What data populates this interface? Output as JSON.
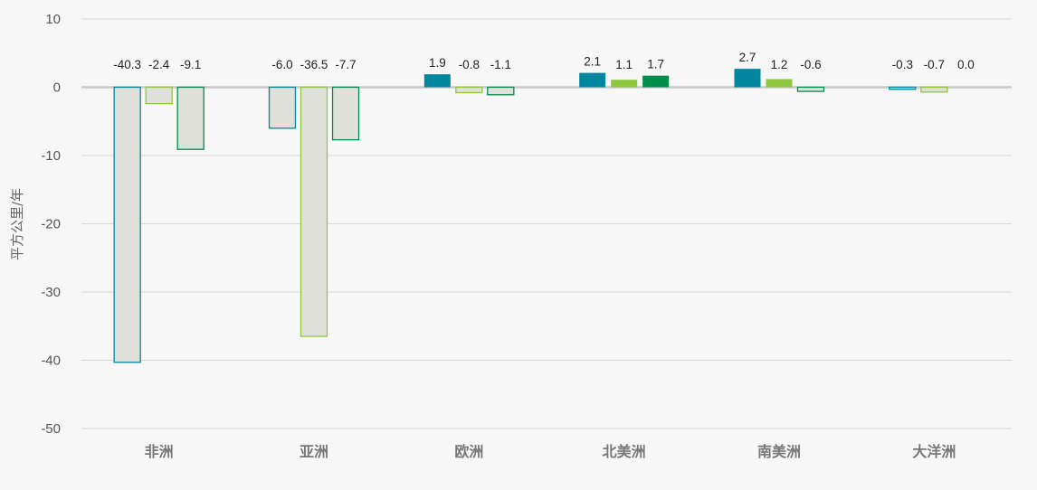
{
  "chart_data": {
    "type": "bar",
    "ylabel": "平方公里/年",
    "ylim": [
      -50,
      10
    ],
    "yticks": [
      10,
      0,
      -10,
      -20,
      -30,
      -40,
      -50
    ],
    "grid": true,
    "categories": [
      "非洲",
      "亚洲",
      "欧洲",
      "北美洲",
      "南美洲",
      "大洋洲"
    ],
    "series": [
      {
        "color": "#00869e",
        "values": [
          -40.3,
          -6.0,
          1.9,
          2.1,
          2.7,
          -0.3
        ]
      },
      {
        "color": "#8fc73e",
        "values": [
          -2.4,
          -36.5,
          -0.8,
          1.1,
          1.2,
          -0.7
        ]
      },
      {
        "color": "#008c4a",
        "values": [
          -9.1,
          -7.7,
          -1.1,
          1.7,
          -0.6,
          0.0
        ]
      }
    ],
    "data_labels": [
      [
        "-40.3",
        "-2.4",
        "-9.1"
      ],
      [
        "-6.0",
        "-36.5",
        "-7.7"
      ],
      [
        "1.9",
        "-0.8",
        "-1.1"
      ],
      [
        "2.1",
        "1.1",
        "1.7"
      ],
      [
        "2.7",
        "1.2",
        "-0.6"
      ],
      [
        "-0.3",
        "-0.7",
        "0.0"
      ]
    ],
    "negative_fill": "#e0e0da",
    "gridline_color": "#d9d9d9",
    "zero_line_color": "#c8c8c8"
  }
}
